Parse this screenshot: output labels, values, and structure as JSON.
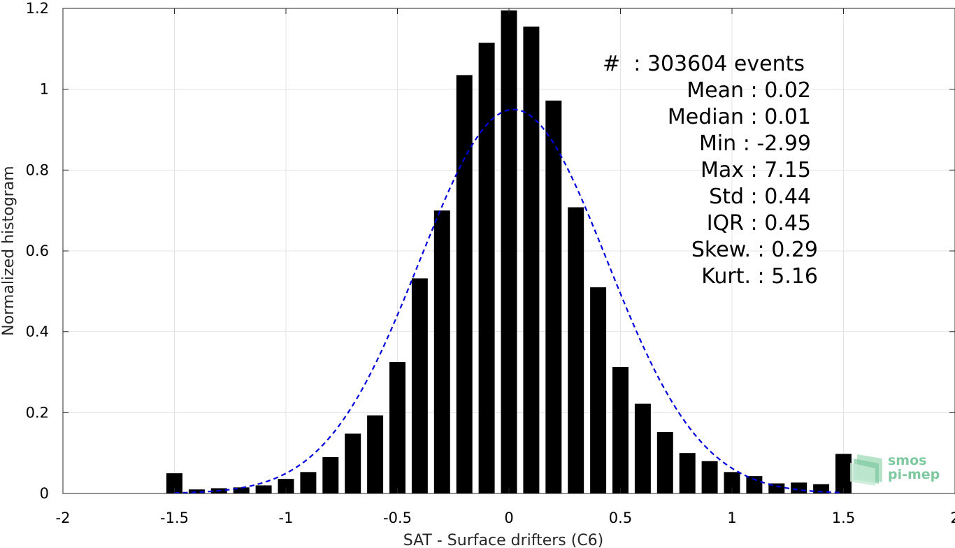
{
  "chart_data": {
    "type": "bar",
    "xlabel": "SAT - Surface drifters (C6)",
    "ylabel": "Normalized histogram",
    "xlim": [
      -2,
      2
    ],
    "ylim": [
      0,
      1.2
    ],
    "xticks": [
      -2,
      -1.5,
      -1,
      -0.5,
      0,
      0.5,
      1,
      1.5,
      2
    ],
    "xtick_labels": [
      "-2",
      "-1.5",
      "-1",
      "-0.5",
      "0",
      "0.5",
      "1",
      "1.5",
      "2"
    ],
    "yticks": [
      0,
      0.2,
      0.4,
      0.6,
      0.8,
      1,
      1.2
    ],
    "ytick_labels": [
      "0",
      "0.2",
      "0.4",
      "0.6",
      "0.8",
      "1",
      "1.2"
    ],
    "grid": true,
    "bar_color": "#000000",
    "bin_width": 0.1,
    "x": [
      -1.5,
      -1.4,
      -1.3,
      -1.2,
      -1.1,
      -1.0,
      -0.9,
      -0.8,
      -0.7,
      -0.6,
      -0.5,
      -0.4,
      -0.3,
      -0.2,
      -0.1,
      0.0,
      0.1,
      0.2,
      0.3,
      0.4,
      0.5,
      0.6,
      0.7,
      0.8,
      0.9,
      1.0,
      1.1,
      1.2,
      1.3,
      1.4,
      1.5
    ],
    "values": [
      0.05,
      0.01,
      0.013,
      0.015,
      0.02,
      0.036,
      0.053,
      0.09,
      0.148,
      0.193,
      0.325,
      0.532,
      0.7,
      1.035,
      1.115,
      1.195,
      1.155,
      0.972,
      0.708,
      0.51,
      0.313,
      0.222,
      0.152,
      0.1,
      0.08,
      0.053,
      0.043,
      0.025,
      0.027,
      0.023,
      0.098
    ],
    "fit_curve": {
      "type": "gaussian",
      "color": "#0000dd",
      "style": "dashed",
      "mean": 0.02,
      "std": 0.42,
      "x_range": [
        -1.5,
        1.5
      ]
    },
    "annotations": [
      {
        "label": "#  ",
        "value": ": 303604 events"
      },
      {
        "label": "Mean",
        "value": " : 0.02"
      },
      {
        "label": "Median",
        "value": " : 0.01"
      },
      {
        "label": "Min",
        "value": " : -2.99"
      },
      {
        "label": "Max",
        "value": " : 7.15"
      },
      {
        "label": "Std",
        "value": " : 0.44"
      },
      {
        "label": "IQR",
        "value": " : 0.45"
      },
      {
        "label": "Skew.",
        "value": " : 0.29"
      },
      {
        "label": "Kurt.",
        "value": " : 5.16"
      }
    ]
  },
  "logo": {
    "line1": "smos",
    "line2": "pi-mep",
    "color": "#7ec9a0"
  }
}
